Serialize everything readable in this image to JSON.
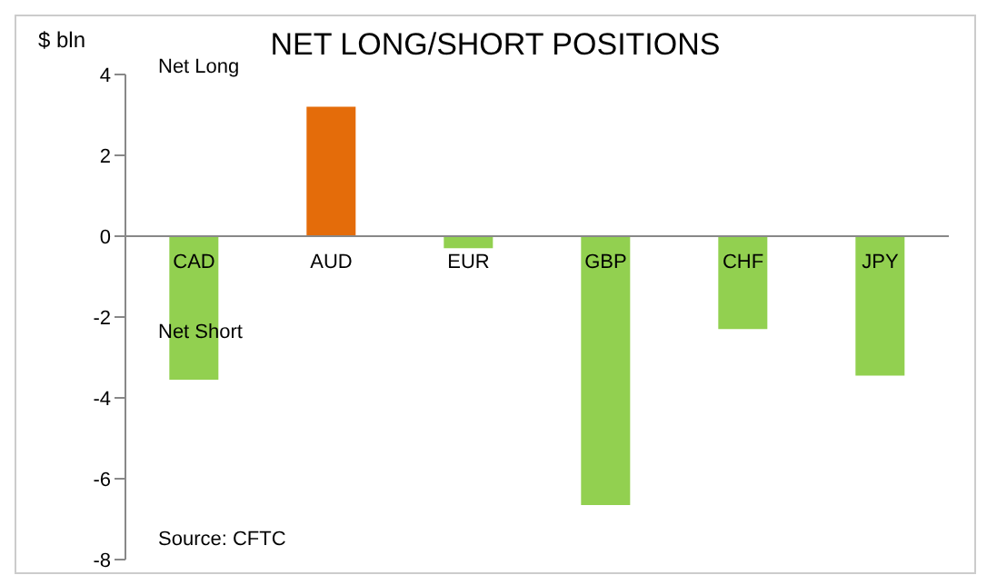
{
  "chart_data": {
    "type": "bar",
    "title": "NET LONG/SHORT POSITIONS",
    "ylabel": "$ bln",
    "categories": [
      "CAD",
      "AUD",
      "EUR",
      "GBP",
      "CHF",
      "JPY"
    ],
    "values": [
      -3.55,
      3.2,
      -0.3,
      -6.65,
      -2.3,
      -3.45
    ],
    "colors": [
      "#92d050",
      "#e46c0a",
      "#92d050",
      "#92d050",
      "#92d050",
      "#92d050"
    ],
    "ylim": [
      -8,
      4
    ],
    "yticks": [
      -8,
      -6,
      -4,
      -2,
      0,
      2,
      4
    ],
    "annotations": [
      "Net Long",
      "Net Short",
      "Source: CFTC"
    ]
  }
}
